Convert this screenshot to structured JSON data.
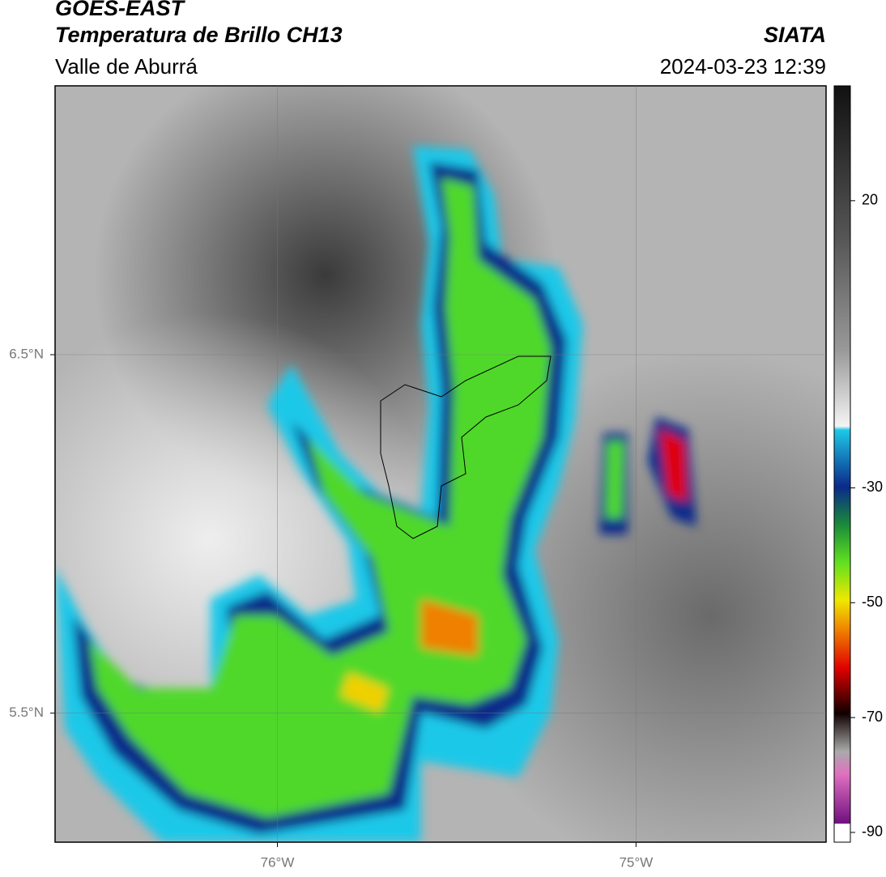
{
  "header": {
    "title": "GOES-EAST",
    "subtitle": "Temperatura de Brillo CH13",
    "region": "Valle de Aburrá",
    "source": "SIATA",
    "datetime": "2024-03-23 12:39"
  },
  "map": {
    "lonlim": [
      -76.62,
      -74.47
    ],
    "latlim": [
      5.14,
      7.25
    ],
    "lonticks": [
      {
        "value": -76,
        "label": "76°W"
      },
      {
        "value": -75,
        "label": "75°W"
      }
    ],
    "latticks": [
      {
        "value": 6.5,
        "label": "6.5°N"
      },
      {
        "value": 5.5,
        "label": "5.5°N"
      }
    ]
  },
  "colorbar": {
    "lim": [
      -91.7,
      40
    ],
    "ticks": [
      20,
      -30,
      -50,
      -70,
      -90
    ]
  }
}
